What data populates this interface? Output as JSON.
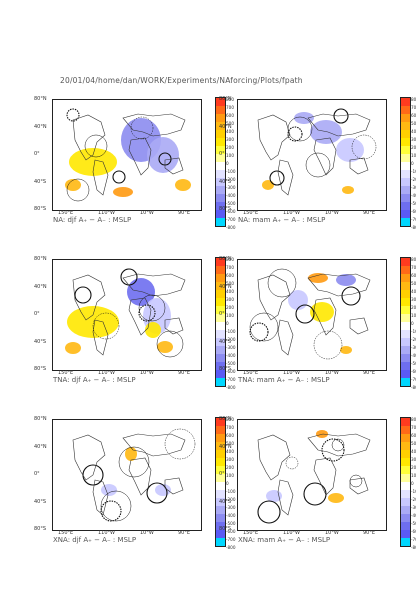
{
  "header": "20/01/04/home/dan/WORK/Experiments/NAforcing/Plots/fpath",
  "lat_labels": [
    "80°N",
    "40°N",
    "0°",
    "40°S",
    "80°S"
  ],
  "lon_labels": [
    "150°E",
    "110°W",
    "10°W",
    "90°E"
  ],
  "colorbar": {
    "labels": [
      "800",
      "700",
      "600",
      "500",
      "400",
      "300",
      "200",
      "100",
      "0",
      "-100",
      "-200",
      "-300",
      "-400",
      "-500",
      "-600",
      "-700",
      "-800"
    ],
    "colors": [
      "#ff3b1f",
      "#ff6a18",
      "#ff9a12",
      "#ffb812",
      "#ffd000",
      "#ffe800",
      "#ffff3a",
      "#ffff9a",
      "#ffffff",
      "#e2e2ff",
      "#c8c8ff",
      "#aaaaf5",
      "#8c8cf0",
      "#6e6ef0",
      "#5a5af5",
      "#00d7ff"
    ]
  },
  "panels": [
    {
      "caption": "NA: djf A₊ − A₋ : MSLP"
    },
    {
      "caption": "NA: mam A₊ − A₋ : MSLP"
    },
    {
      "caption": "TNA: djf A₊ − A₋ : MSLP"
    },
    {
      "caption": "TNA: mam A₊ − A₋ : MSLP"
    },
    {
      "caption": "XNA: djf A₊ − A₋ : MSLP"
    },
    {
      "caption": "XNA: mam A₊ − A₋ : MSLP"
    }
  ]
}
